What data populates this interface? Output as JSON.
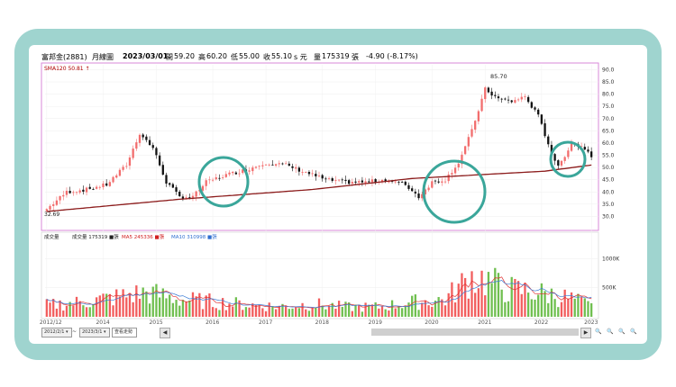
{
  "header": {
    "stock": "富邦金(2881)",
    "period": "月線圖",
    "date": "2023/03/01",
    "open_label": "開",
    "open": "59.20",
    "high_label": "高",
    "high": "60.20",
    "low_label": "低",
    "low": "55.00",
    "close_label": "收",
    "close": "55.10",
    "unit": "s 元",
    "volume_label": "量",
    "volume": "175319",
    "volume_unit": "張",
    "change": "-4.90 (-8.17%)"
  },
  "price_panel": {
    "sma_label": "SMA120 50.81 ↑",
    "high_marker": "85.70",
    "low_marker": "32.69"
  },
  "volume_panel": {
    "title": "成交量",
    "vol_label": "成交量 175319 ■張",
    "ma5_label": "MA5 245336 ■張",
    "ma10_label": "MA10 310998 ■張"
  },
  "status": {
    "start_date": "2012/2/1",
    "tilde": "~",
    "end_date": "2023/3/1",
    "button": "查看走勢",
    "arrow_left": "◀",
    "arrow_right": "▶",
    "zoom_icons": [
      "🔍",
      "🔍",
      "🔍",
      "🔍"
    ]
  },
  "colors": {
    "up": "#f26d6d",
    "down": "#111111",
    "vol_up": "#f25d5d",
    "vol_down": "#6fbf4f",
    "sma": "#8b1a1a",
    "ma5": "#e03030",
    "ma10": "#3a7bd5",
    "circle": "#3aa69a",
    "panel_border": "#d98ad9"
  },
  "chart_data": {
    "type": "candlestick",
    "x_ticks": [
      "2012/12",
      "2014",
      "2015",
      "2016",
      "2017",
      "2018",
      "2019",
      "2020",
      "2021",
      "2022",
      "2023"
    ],
    "price_ylim": [
      25,
      92
    ],
    "price_ticks": [
      "30.0",
      "35.0",
      "40.0",
      "45.0",
      "50.0",
      "55.0",
      "60.0",
      "65.0",
      "70.0",
      "75.0",
      "80.0",
      "85.0",
      "90.0"
    ],
    "volume_ylim": [
      0,
      1300
    ],
    "volume_ticks": [
      "500K",
      "1000K"
    ],
    "anchors": [
      [
        0,
        33
      ],
      [
        6,
        40
      ],
      [
        12,
        41
      ],
      [
        18,
        43
      ],
      [
        24,
        51
      ],
      [
        28,
        64
      ],
      [
        32,
        58
      ],
      [
        36,
        44
      ],
      [
        40,
        38
      ],
      [
        44,
        38
      ],
      [
        48,
        44
      ],
      [
        54,
        47
      ],
      [
        60,
        49
      ],
      [
        66,
        52
      ],
      [
        72,
        51
      ],
      [
        78,
        48
      ],
      [
        84,
        45
      ],
      [
        90,
        44
      ],
      [
        96,
        44
      ],
      [
        102,
        45
      ],
      [
        108,
        43
      ],
      [
        112,
        38
      ],
      [
        116,
        44
      ],
      [
        120,
        45
      ],
      [
        124,
        52
      ],
      [
        128,
        65
      ],
      [
        132,
        82
      ],
      [
        136,
        78
      ],
      [
        140,
        77
      ],
      [
        144,
        79
      ],
      [
        148,
        71
      ],
      [
        152,
        56
      ],
      [
        154,
        50
      ],
      [
        158,
        60
      ],
      [
        162,
        58
      ],
      [
        164,
        55
      ]
    ],
    "sma_anchors": [
      [
        0,
        32
      ],
      [
        40,
        37
      ],
      [
        80,
        41
      ],
      [
        110,
        45.5
      ],
      [
        130,
        47
      ],
      [
        150,
        48.5
      ],
      [
        164,
        51
      ]
    ],
    "volume_anchors": [
      [
        0,
        200
      ],
      [
        10,
        250
      ],
      [
        20,
        330
      ],
      [
        30,
        420
      ],
      [
        40,
        300
      ],
      [
        50,
        260
      ],
      [
        60,
        210
      ],
      [
        70,
        180
      ],
      [
        80,
        220
      ],
      [
        90,
        170
      ],
      [
        100,
        170
      ],
      [
        110,
        250
      ],
      [
        120,
        300
      ],
      [
        128,
        700
      ],
      [
        132,
        640
      ],
      [
        138,
        480
      ],
      [
        146,
        430
      ],
      [
        152,
        380
      ],
      [
        158,
        310
      ],
      [
        164,
        180
      ]
    ],
    "annotations": [
      "85.70",
      "32.69"
    ]
  }
}
